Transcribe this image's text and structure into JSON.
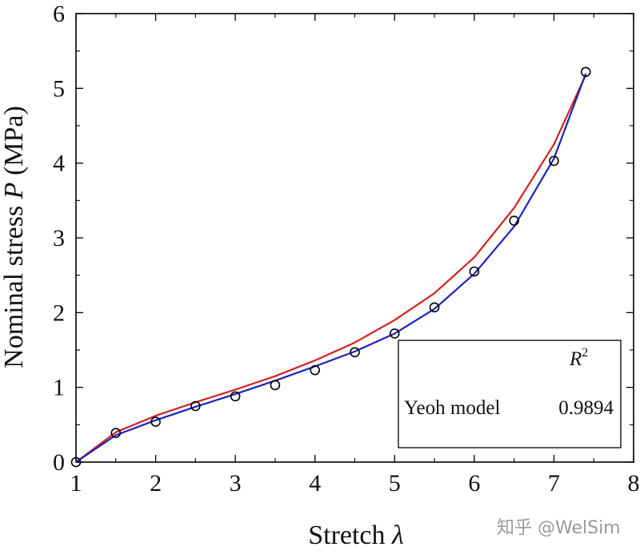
{
  "chart_data": {
    "type": "line",
    "xlabel_prefix": "Stretch ",
    "xlabel_symbol": "λ",
    "ylabel_prefix": "Nominal stress ",
    "ylabel_symbol": "P",
    "ylabel_suffix": " (MPa)",
    "xlim": [
      1,
      8
    ],
    "ylim": [
      0,
      6
    ],
    "xticks": [
      "1",
      "2",
      "3",
      "4",
      "5",
      "6",
      "7",
      "8"
    ],
    "yticks": [
      "0",
      "1",
      "2",
      "3",
      "4",
      "5",
      "6"
    ],
    "grid": false,
    "series": [
      {
        "kind": "markers",
        "marker": "open-circle",
        "color": "#000000",
        "x": [
          1,
          1.5,
          2,
          2.5,
          3,
          3.5,
          4,
          4.5,
          5,
          5.5,
          6,
          6.5,
          7,
          7.4
        ],
        "y": [
          0,
          0.39,
          0.54,
          0.75,
          0.88,
          1.03,
          1.23,
          1.47,
          1.72,
          2.07,
          2.55,
          3.23,
          4.03,
          5.22
        ]
      },
      {
        "kind": "line",
        "color": "#d42020",
        "x": [
          1,
          1.5,
          2,
          2.5,
          3,
          3.5,
          4,
          4.5,
          5,
          5.5,
          6,
          6.5,
          7,
          7.4
        ],
        "y": [
          0,
          0.4,
          0.62,
          0.8,
          0.97,
          1.15,
          1.36,
          1.6,
          1.9,
          2.26,
          2.74,
          3.4,
          4.25,
          5.18
        ]
      },
      {
        "kind": "line",
        "color": "#1c22b8",
        "x": [
          1,
          1.5,
          2,
          2.5,
          3,
          3.5,
          4,
          4.5,
          5,
          5.5,
          6,
          6.5,
          7,
          7.4
        ],
        "y": [
          0,
          0.36,
          0.56,
          0.74,
          0.91,
          1.09,
          1.28,
          1.48,
          1.72,
          2.05,
          2.52,
          3.15,
          4.06,
          5.2
        ]
      }
    ],
    "legend": {
      "placement": "bottom-right",
      "header_symbol": "R",
      "header_superscript": "2",
      "rows": [
        {
          "label": "Yeoh model",
          "value": "0.9894"
        }
      ]
    },
    "watermark": "知乎 @WelSim"
  }
}
